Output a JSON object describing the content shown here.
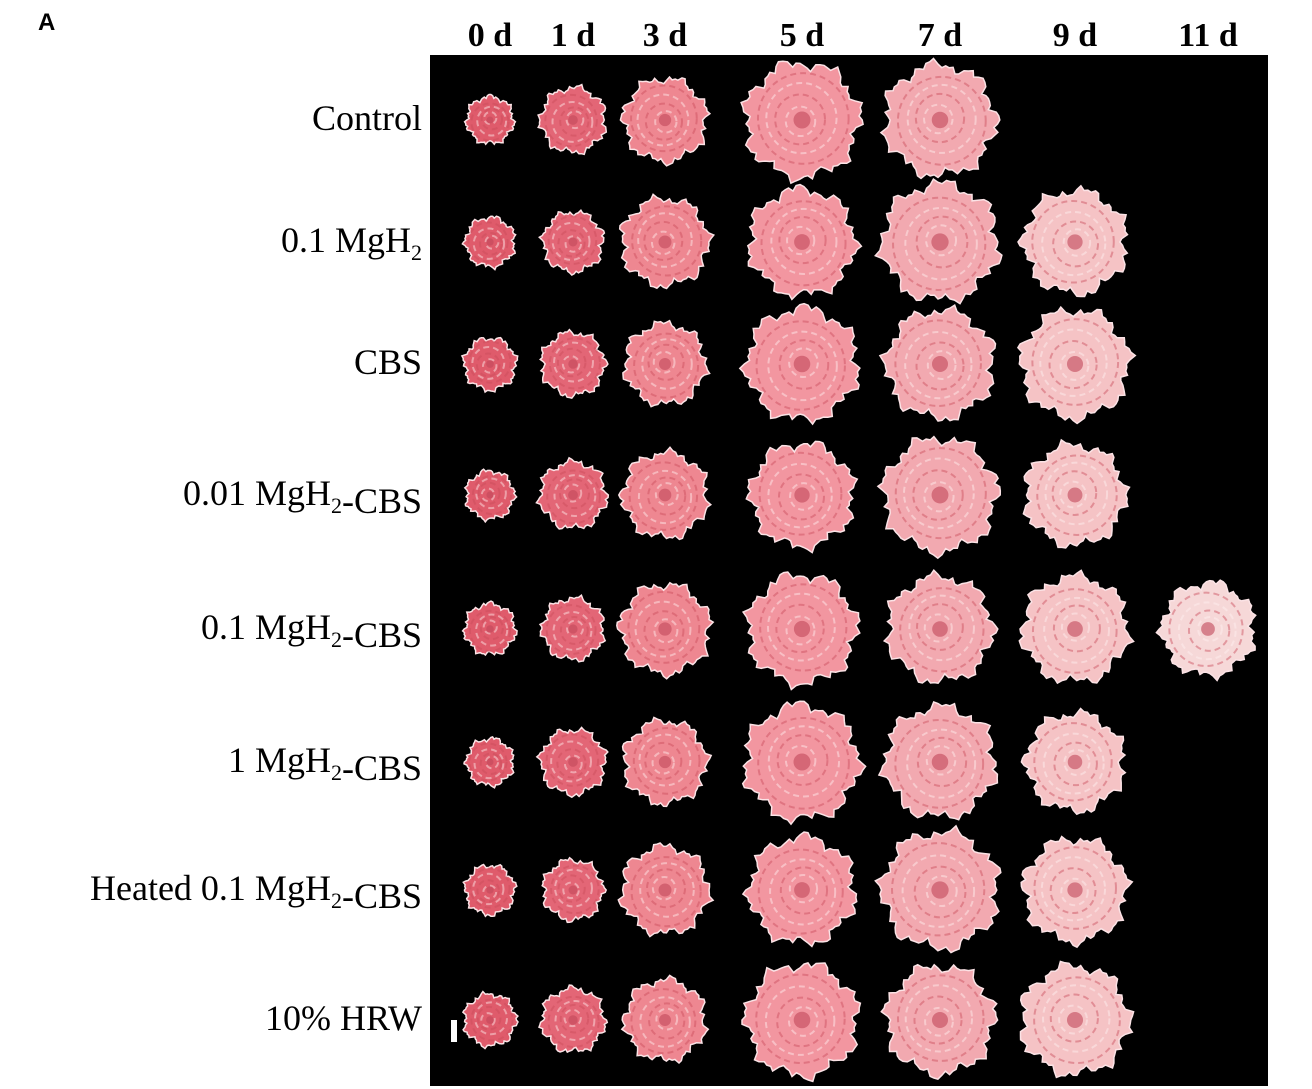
{
  "panel_label": "A",
  "columns": [
    "0 d",
    "1 d",
    "3 d",
    "5 d",
    "7 d",
    "9 d",
    "11 d"
  ],
  "rows": [
    {
      "label": [
        "Control"
      ]
    },
    {
      "label": [
        "0.1 MgH",
        {
          "sub": "2"
        }
      ]
    },
    {
      "label": [
        "CBS"
      ]
    },
    {
      "label": [
        "0.01 MgH",
        {
          "sub": "2"
        },
        "-CBS"
      ]
    },
    {
      "label": [
        "0.1 MgH",
        {
          "sub": "2"
        },
        "-CBS"
      ]
    },
    {
      "label": [
        "1 MgH",
        {
          "sub": "2"
        },
        "-CBS"
      ]
    },
    {
      "label": [
        "Heated 0.1 MgH",
        {
          "sub": "2"
        },
        "-CBS"
      ]
    },
    {
      "label": [
        "10% HRW"
      ]
    }
  ]
}
